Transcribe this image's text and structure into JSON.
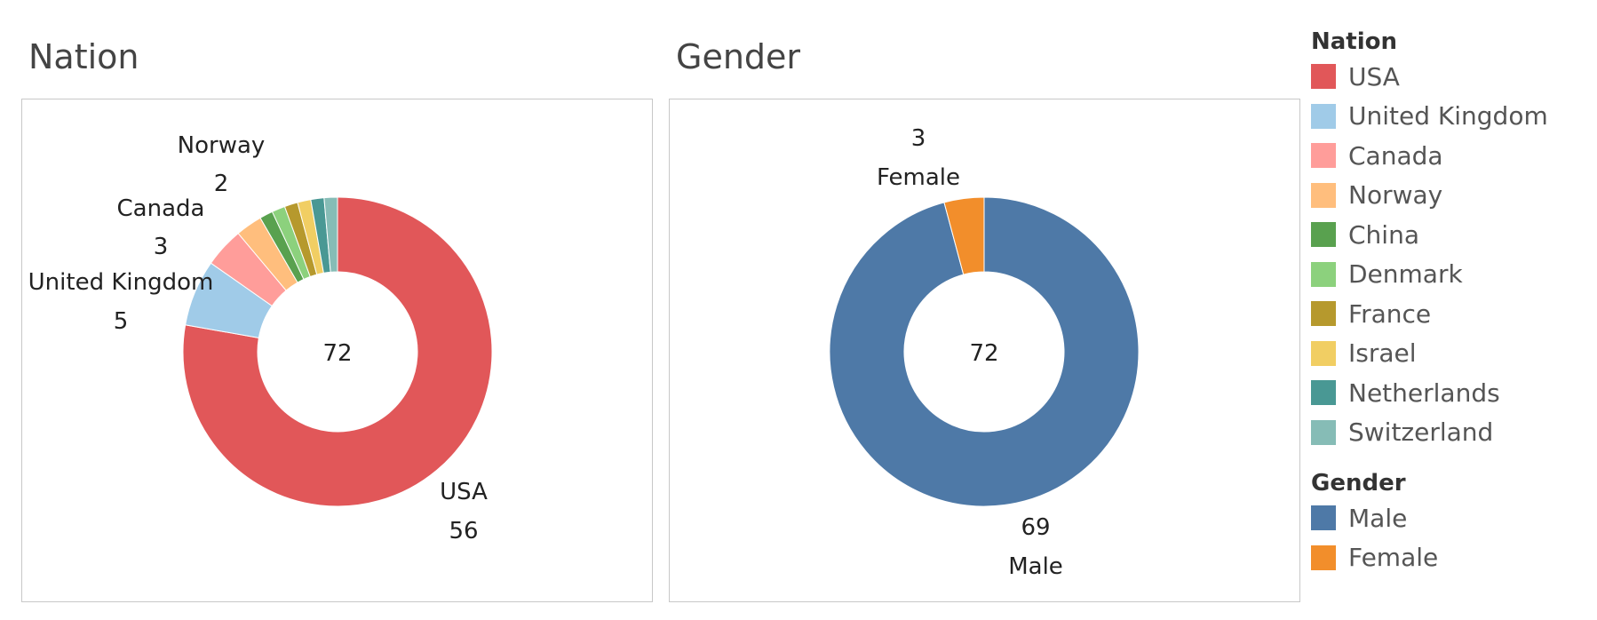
{
  "colors": {
    "USA": "#e15759",
    "United Kingdom": "#a0cbe8",
    "Canada": "#ff9d9a",
    "Norway": "#ffbe7d",
    "China": "#59a14f",
    "Denmark": "#8cd17d",
    "France": "#b6992d",
    "Israel": "#f1ce63",
    "Netherlands": "#499894",
    "Switzerland": "#86bcb6",
    "Male": "#4e79a7",
    "Female": "#f28e2b"
  },
  "chart_data": [
    {
      "type": "pie",
      "title": "Nation",
      "total_label": "72",
      "slices": [
        {
          "name": "USA",
          "value": 56
        },
        {
          "name": "United Kingdom",
          "value": 5
        },
        {
          "name": "Canada",
          "value": 3
        },
        {
          "name": "Norway",
          "value": 2
        },
        {
          "name": "China",
          "value": 1
        },
        {
          "name": "Denmark",
          "value": 1
        },
        {
          "name": "France",
          "value": 1
        },
        {
          "name": "Israel",
          "value": 1
        },
        {
          "name": "Netherlands",
          "value": 1
        },
        {
          "name": "Switzerland",
          "value": 1
        }
      ],
      "data_labels": [
        {
          "name": "Norway",
          "value": "2"
        },
        {
          "name": "Canada",
          "value": "3"
        },
        {
          "name": "United Kingdom",
          "value": "5"
        },
        {
          "name": "USA",
          "value": "56"
        }
      ]
    },
    {
      "type": "pie",
      "title": "Gender",
      "total_label": "72",
      "slices": [
        {
          "name": "Male",
          "value": 69
        },
        {
          "name": "Female",
          "value": 3
        }
      ],
      "data_labels": [
        {
          "name": "Female",
          "value": "3"
        },
        {
          "name": "Male",
          "value": "69"
        }
      ]
    }
  ],
  "legend": {
    "nation_title": "Nation",
    "nation_items": [
      "USA",
      "United Kingdom",
      "Canada",
      "Norway",
      "China",
      "Denmark",
      "France",
      "Israel",
      "Netherlands",
      "Switzerland"
    ],
    "gender_title": "Gender",
    "gender_items": [
      "Male",
      "Female"
    ]
  }
}
